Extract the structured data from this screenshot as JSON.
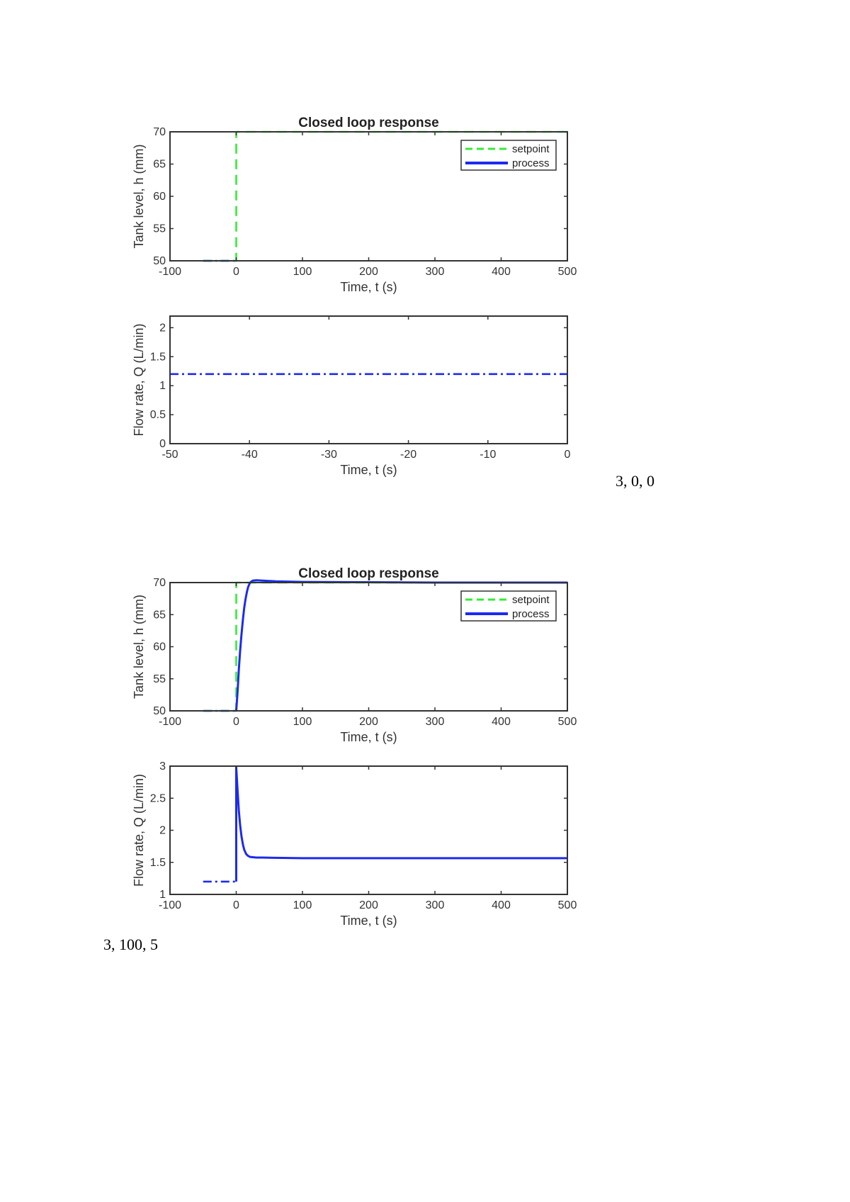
{
  "captions": [
    "3, 0, 0",
    "3, 100, 5"
  ],
  "colors": {
    "setpoint": "#33ee33",
    "process": "#1c2bee",
    "axes": "#333333"
  },
  "chart_data": [
    {
      "type": "line",
      "title": "Closed loop response",
      "xlabel": "Time, t (s)",
      "ylabel": "Tank level, h (mm)",
      "xlim": [
        -100,
        500
      ],
      "ylim": [
        50,
        70
      ],
      "xticks": [
        -100,
        0,
        100,
        200,
        300,
        400,
        500
      ],
      "xtick_labels": [
        "-100",
        "0",
        "100",
        "200",
        "300",
        "400",
        "500"
      ],
      "yticks": [
        50,
        55,
        60,
        65,
        70
      ],
      "ytick_labels": [
        "50",
        "55",
        "60",
        "65",
        "70"
      ],
      "legend": {
        "placement": "top-right",
        "entries": [
          "setpoint",
          "process"
        ]
      },
      "series": [
        {
          "name": "setpoint",
          "style": "dashed",
          "color": "#33ee33",
          "x": [
            -50,
            0,
            0,
            500
          ],
          "y": [
            50,
            50,
            70,
            70
          ]
        },
        {
          "name": "process",
          "style": "solid",
          "color": "#1c2bee",
          "x": [
            0
          ],
          "y": [
            50
          ]
        },
        {
          "style": "dashdot",
          "color": "#1c2bee",
          "x": [
            -50,
            0
          ],
          "y": [
            50,
            50
          ]
        }
      ]
    },
    {
      "type": "line",
      "title": "",
      "xlabel": "Time, t (s)",
      "ylabel": "Flow rate, Q (L/min)",
      "xlim": [
        -50,
        0
      ],
      "ylim": [
        0,
        2.2
      ],
      "xticks": [
        -50,
        -40,
        -30,
        -20,
        -10,
        0
      ],
      "xtick_labels": [
        "-50",
        "-40",
        "-30",
        "-20",
        "-10",
        "0"
      ],
      "yticks": [
        0,
        0.5,
        1,
        1.5,
        2
      ],
      "ytick_labels": [
        "0",
        "0.5",
        "1",
        "1.5",
        "2"
      ],
      "series": [
        {
          "style": "dashdot",
          "color": "#1c2bee",
          "x": [
            -50,
            0
          ],
          "y": [
            1.2,
            1.2
          ]
        }
      ]
    },
    {
      "type": "line",
      "title": "Closed loop response",
      "xlabel": "Time, t (s)",
      "ylabel": "Tank level, h (mm)",
      "xlim": [
        -100,
        500
      ],
      "ylim": [
        50,
        70
      ],
      "xticks": [
        -100,
        0,
        100,
        200,
        300,
        400,
        500
      ],
      "xtick_labels": [
        "-100",
        "0",
        "100",
        "200",
        "300",
        "400",
        "500"
      ],
      "yticks": [
        50,
        55,
        60,
        65,
        70
      ],
      "ytick_labels": [
        "50",
        "55",
        "60",
        "65",
        "70"
      ],
      "legend": {
        "placement": "top-right",
        "entries": [
          "setpoint",
          "process"
        ]
      },
      "series": [
        {
          "name": "setpoint",
          "style": "dashed",
          "color": "#33ee33",
          "x": [
            -50,
            0,
            0,
            500
          ],
          "y": [
            50,
            50,
            70,
            70
          ]
        },
        {
          "name": "process",
          "style": "solid",
          "color": "#1c2bee",
          "x": [
            0,
            2,
            4,
            6,
            8,
            10,
            12,
            14,
            16,
            18,
            20,
            22,
            25,
            30,
            40,
            60,
            100,
            200,
            300,
            400,
            500
          ],
          "y": [
            50,
            53,
            56.5,
            59.5,
            62,
            64.2,
            66,
            67.4,
            68.5,
            69.3,
            69.8,
            70.1,
            70.3,
            70.35,
            70.3,
            70.2,
            70.1,
            70.05,
            70,
            70,
            70
          ]
        },
        {
          "style": "dashdot",
          "color": "#1c2bee",
          "x": [
            -50,
            0
          ],
          "y": [
            50,
            50
          ]
        }
      ]
    },
    {
      "type": "line",
      "title": "",
      "xlabel": "Time, t (s)",
      "ylabel": "Flow rate, Q (L/min)",
      "xlim": [
        -100,
        500
      ],
      "ylim": [
        1,
        3
      ],
      "xticks": [
        -100,
        0,
        100,
        200,
        300,
        400,
        500
      ],
      "xtick_labels": [
        "-100",
        "0",
        "100",
        "200",
        "300",
        "400",
        "500"
      ],
      "yticks": [
        1,
        1.5,
        2,
        2.5,
        3
      ],
      "ytick_labels": [
        "1",
        "1.5",
        "2",
        "2.5",
        "3"
      ],
      "series": [
        {
          "style": "solid",
          "color": "#1c2bee",
          "x": [
            0,
            0,
            2,
            4,
            6,
            8,
            10,
            12,
            15,
            18,
            21,
            25,
            30,
            40,
            60,
            100,
            200,
            300,
            400,
            500
          ],
          "y": [
            1.2,
            2.98,
            2.62,
            2.3,
            2.07,
            1.9,
            1.78,
            1.7,
            1.63,
            1.6,
            1.585,
            1.58,
            1.575,
            1.575,
            1.57,
            1.565,
            1.565,
            1.565,
            1.565,
            1.565
          ]
        },
        {
          "style": "dashdot",
          "color": "#1c2bee",
          "x": [
            -50,
            0
          ],
          "y": [
            1.2,
            1.2
          ]
        }
      ]
    }
  ]
}
